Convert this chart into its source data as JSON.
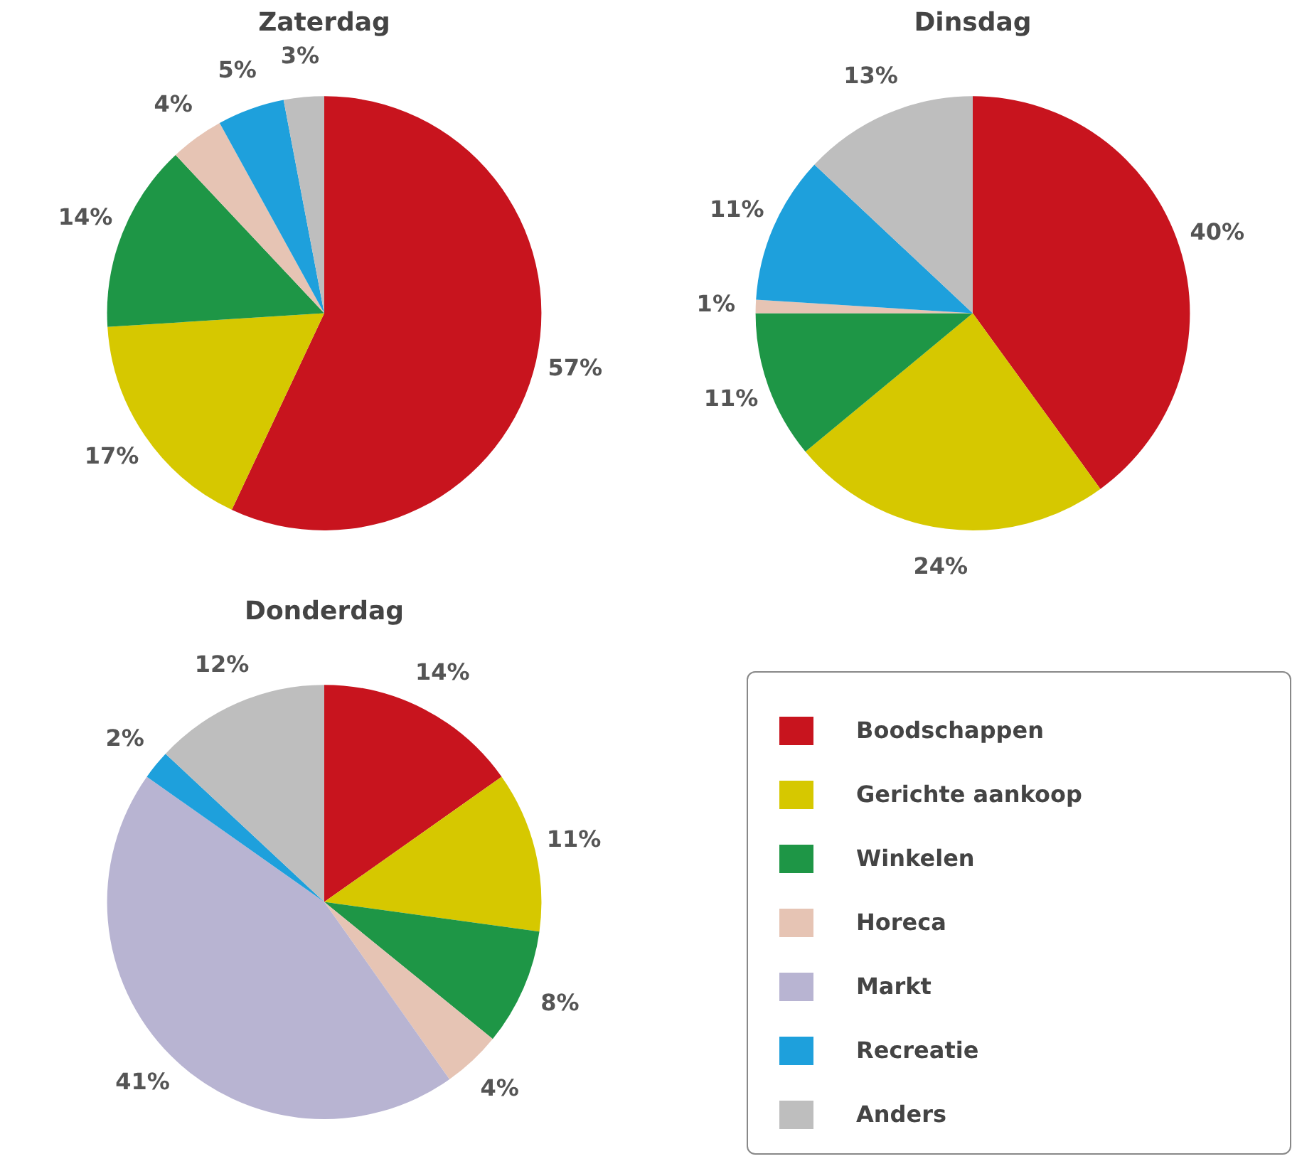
{
  "chart_data": [
    {
      "type": "pie",
      "title": "Zaterdag",
      "categories": [
        null,
        null,
        null,
        null,
        null,
        null
      ],
      "values": [
        57,
        17,
        14,
        4,
        5,
        3
      ],
      "colors": [
        "#c8141e",
        "#d6c800",
        "#1e9646",
        "#e6c4b4",
        "#1ea0dc",
        "#bebebe"
      ],
      "value_labels": [
        "57%",
        "17%",
        "14%",
        "4%",
        "5%",
        "3%"
      ]
    },
    {
      "type": "pie",
      "title": "Dinsdag",
      "categories": [
        null,
        null,
        null,
        null,
        null,
        null
      ],
      "values": [
        40,
        24,
        11,
        1,
        11,
        13
      ],
      "colors": [
        "#c8141e",
        "#d6c800",
        "#1e9646",
        "#e6c4b4",
        "#1ea0dc",
        "#bebebe"
      ],
      "value_labels": [
        "40%",
        "24%",
        "11%",
        "1%",
        "11%",
        "13%"
      ]
    },
    {
      "type": "pie",
      "title": "Donderdag",
      "categories": [
        "Boodschappen",
        "Gerichte aankoop",
        "Winkelen",
        "Horeca",
        "Markt",
        "Recreatie",
        "Anders"
      ],
      "values": [
        14,
        11,
        8,
        4,
        41,
        2,
        12
      ],
      "colors": [
        "#c8141e",
        "#d6c800",
        "#1e9646",
        "#e6c4b4",
        "#b8b4d2",
        "#1ea0dc",
        "#bebebe"
      ],
      "value_labels": [
        "14%",
        "11%",
        "8%",
        "4%",
        "41%",
        "2%",
        "12%"
      ],
      "legend": "right"
    }
  ]
}
